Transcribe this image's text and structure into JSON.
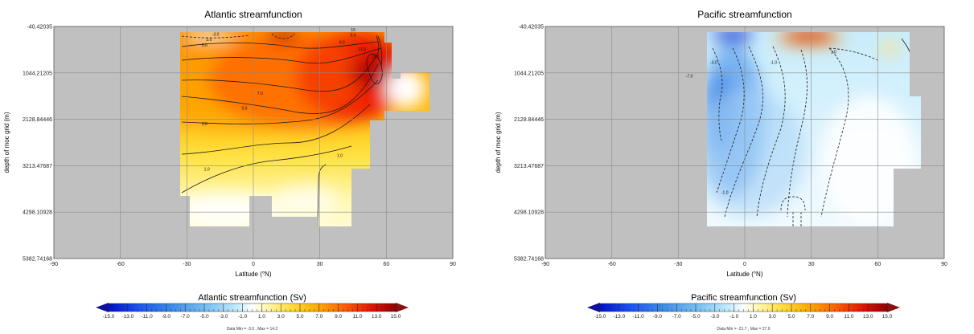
{
  "chart_data": [
    {
      "type": "heatmap",
      "title": "Atlantic streamfunction",
      "xlabel": "Latitude (°N)",
      "ylabel": "depth of moc grid (m)",
      "xlim": [
        -90,
        90
      ],
      "ylim": [
        -40.42035,
        5382.74168
      ],
      "xticks": [
        "-90",
        "-60",
        "-30",
        "0",
        "30",
        "60",
        "90"
      ],
      "yticks": [
        "-40.42035",
        "1044.21205",
        "2128.84446",
        "3213.47687",
        "4298.10928",
        "5382.74168"
      ],
      "ytick_values": [
        -40.42035,
        1044.21205,
        2128.84446,
        3213.47687,
        4298.10928,
        5382.74168
      ],
      "grid": true,
      "colorbar": {
        "title": "Atlantic streamfunction (Sv)",
        "range": [
          -15,
          15
        ],
        "ticks": [
          "-15.0",
          "-13.0",
          "-11.0",
          "-9.0",
          "-7.0",
          "-5.0",
          "-3.0",
          "-1.0",
          "1.0",
          "3.0",
          "5.0",
          "7.0",
          "9.0",
          "11.0",
          "13.0",
          "15.0"
        ]
      },
      "data_min_max": "Data Min = -3.0 , Max = 14.2",
      "contour_labels": [
        {
          "text": "-3.0",
          "lat": -17,
          "depth": 180
        },
        {
          "text": "3.0",
          "lat": -20,
          "depth": 300
        },
        {
          "text": "5.0",
          "lat": -22,
          "depth": 430
        },
        {
          "text": "5.0",
          "lat": 45,
          "depth": 190
        },
        {
          "text": "9.0",
          "lat": 40,
          "depth": 360
        },
        {
          "text": "11.0",
          "lat": 49,
          "depth": 520
        },
        {
          "text": "13.0",
          "lat": 55,
          "depth": 700
        },
        {
          "text": "10",
          "lat": 45,
          "depth": 70
        },
        {
          "text": "7.0",
          "lat": 3,
          "depth": 1550
        },
        {
          "text": "5.0",
          "lat": -4,
          "depth": 1900
        },
        {
          "text": "3.0",
          "lat": -22,
          "depth": 2270
        },
        {
          "text": "1.0",
          "lat": -21,
          "depth": 3330
        },
        {
          "text": "1.0",
          "lat": 39,
          "depth": 3010
        }
      ]
    },
    {
      "type": "heatmap",
      "title": "Pacific streamfunction",
      "xlabel": "Latitude (°N)",
      "ylabel": "depth of moc grid (m)",
      "xlim": [
        -90,
        90
      ],
      "ylim": [
        -40.42035,
        5382.74168
      ],
      "xticks": [
        "-90",
        "-60",
        "-30",
        "0",
        "30",
        "60",
        "90"
      ],
      "yticks": [
        "-40.42035",
        "1044.21205",
        "2128.84446",
        "3213.47687",
        "4298.10928",
        "5382.74168"
      ],
      "ytick_values": [
        -40.42035,
        1044.21205,
        2128.84446,
        3213.47687,
        4298.10928,
        5382.74168
      ],
      "grid": true,
      "colorbar": {
        "title": "Pacific streamfunction (Sv)",
        "range": [
          -15,
          15
        ],
        "ticks": [
          "-15.0",
          "-13.0",
          "-11.0",
          "-9.0",
          "-7.0",
          "-5.0",
          "-3.0",
          "-1.0",
          "1.0",
          "3.0",
          "5.0",
          "7.0",
          "9.0",
          "11.0",
          "13.0",
          "15.0"
        ]
      },
      "data_min_max": "Data Min = -21.7 , Max = 27.0",
      "contour_labels": [
        {
          "text": "-7.0",
          "lat": -25,
          "depth": 1150
        },
        {
          "text": "-3.0",
          "lat": -14,
          "depth": 830
        },
        {
          "text": "-1.0",
          "lat": 13,
          "depth": 830
        },
        {
          "text": "1.0",
          "lat": 40,
          "depth": 590
        },
        {
          "text": "-1.0",
          "lat": -9,
          "depth": 3870
        }
      ]
    }
  ]
}
